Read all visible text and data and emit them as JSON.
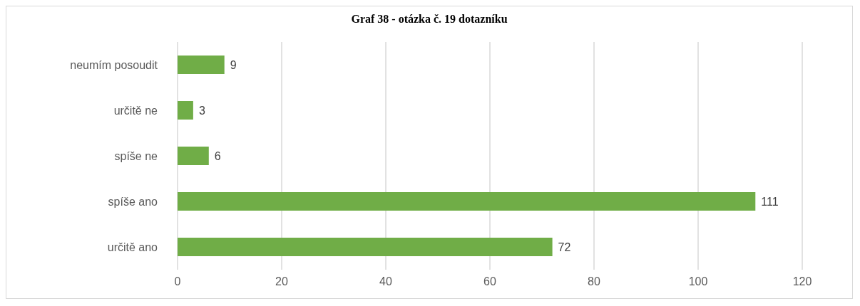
{
  "chart_data": {
    "type": "bar",
    "orientation": "horizontal",
    "title": "Graf 38 - otázka č. 19 dotazníku",
    "categories": [
      "neumím posoudit",
      "určitě ne",
      "spíše ne",
      "spíše ano",
      "určitě ano"
    ],
    "values": [
      9,
      3,
      6,
      111,
      72
    ],
    "color": "#70ad47",
    "xlim": [
      0,
      120
    ],
    "xticks": [
      0,
      20,
      40,
      60,
      80,
      100,
      120
    ],
    "grid": "x",
    "data_labels": true
  }
}
